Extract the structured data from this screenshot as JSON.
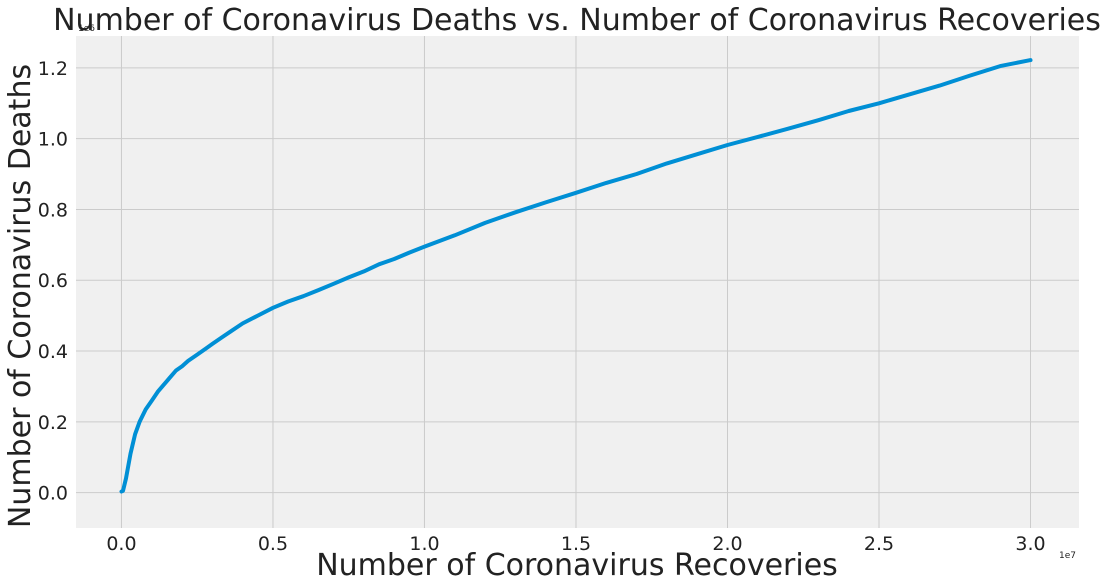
{
  "chart_data": {
    "type": "line",
    "title": "Number of Coronavirus Deaths vs. Number of Coronavirus Recoveries",
    "xlabel": "Number of Coronavirus Recoveries",
    "ylabel": "Number of Coronavirus Deaths",
    "x_offset_label": "1e7",
    "y_offset_label": "1e6",
    "xlim": [
      -1500000,
      31600000
    ],
    "ylim": [
      -100000,
      1290000
    ],
    "x_ticks": [
      0,
      5000000,
      10000000,
      15000000,
      20000000,
      25000000,
      30000000
    ],
    "x_tick_labels": [
      "0.0",
      "0.5",
      "1.0",
      "1.5",
      "2.0",
      "2.5",
      "3.0"
    ],
    "y_ticks": [
      0,
      200000,
      400000,
      600000,
      800000,
      1000000,
      1200000
    ],
    "y_tick_labels": [
      "0.0",
      "0.2",
      "0.4",
      "0.6",
      "0.8",
      "1.0",
      "1.2"
    ],
    "grid": true,
    "colors": {
      "line": "#008fd5",
      "plot_background": "#f0f0f0",
      "grid": "#cbcbcb"
    },
    "series": [
      {
        "x": [
          0,
          50000,
          150000,
          300000,
          450000,
          600000,
          800000,
          1000000,
          1200000,
          1400000,
          1600000,
          1800000,
          2000000,
          2200000,
          2500000,
          2800000,
          3000000,
          3300000,
          3600000,
          4000000,
          4500000,
          5000000,
          5500000,
          6000000,
          6500000,
          7000000,
          7500000,
          8000000,
          8500000,
          9000000,
          9500000,
          10000000,
          11000000,
          12000000,
          13000000,
          14000000,
          15000000,
          16000000,
          17000000,
          18000000,
          19000000,
          20000000,
          21000000,
          22000000,
          23000000,
          24000000,
          25000000,
          26000000,
          27000000,
          28000000,
          29000000,
          30000000
        ],
        "y": [
          3000,
          5000,
          40000,
          110000,
          165000,
          200000,
          235000,
          260000,
          285000,
          305000,
          325000,
          345000,
          357000,
          372000,
          390000,
          408000,
          420000,
          438000,
          455000,
          478000,
          500000,
          522000,
          540000,
          555000,
          572000,
          590000,
          608000,
          625000,
          645000,
          660000,
          678000,
          695000,
          727000,
          762000,
          792000,
          820000,
          847000,
          875000,
          900000,
          930000,
          956000,
          982000,
          1005000,
          1028000,
          1052000,
          1078000,
          1100000,
          1125000,
          1150000,
          1178000,
          1205000,
          1222000
        ]
      }
    ]
  }
}
